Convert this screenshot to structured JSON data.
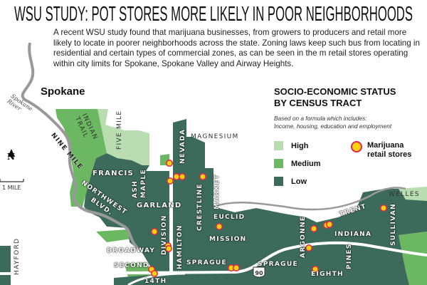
{
  "title": "WSU STUDY: POT STORES MORE LIKELY IN POOR NEIGHBORHOODS",
  "intro_lines": [
    "A recent WSU study found that marijuana businesses, from growers to producers and retail",
    "more likely to locate in poorer neighborhoods across the state. Zoning laws keep such bus",
    "from locating in residential and certain types of commercial zones, as can be seen in the m",
    "retail stores operating within city limits for Spokane, Spokane Valley and Airway Heights."
  ],
  "map": {
    "city_label": "Spokane",
    "river_label": "Spokane River",
    "north_label": "N",
    "scale_label": "1 MILE",
    "interstate_shield": "90",
    "labels": {
      "indian_trail": "INDIAN TRAIL",
      "nine_mile": "NINE MILE",
      "five_mile": "FIVE MILE",
      "magnesium": "MAGNESIUM",
      "nevada": "NEVADA",
      "francis": "FRANCIS",
      "ash": "ASH",
      "maple": "MAPLE",
      "northwest": "NORTHWEST",
      "blvd": "BLVD.",
      "garland": "GARLAND",
      "crestline": "CRESTLINE",
      "market": "MARKET",
      "euclid": "EUCLID",
      "mission": "MISSION",
      "division": "DIVISION",
      "hamilton": "HAMILTON",
      "broadway": "BROADWAY",
      "second": "SECOND",
      "sprague_w": "SPRAGUE",
      "sprague_e": "SPRAGUE",
      "fourteenth": "14TH",
      "hayford": "HAYFORD",
      "argonne": "ARGONNE",
      "eighth": "EIGHTH",
      "pines": "PINES",
      "trent": "TRENT",
      "indiana": "INDIANA",
      "sullivan": "SULLIVAN",
      "wellesley": "WELLES"
    },
    "store_count_shown": 20
  },
  "legend": {
    "title_line1": "SOCIO-ECONOMIC STATUS",
    "title_line2": "BY CENSUS TRACT",
    "subtitle_line1": "Based on a formula which includes:",
    "subtitle_line2": "Income, housing, education and employment",
    "items": [
      {
        "label": "High",
        "color": "#b9dcb0"
      },
      {
        "label": "Medium",
        "color": "#6cb862"
      },
      {
        "label": "Low",
        "color": "#3d6b5b"
      }
    ],
    "marker_label": "Marijuana retail stores",
    "marker_fill": "#fdd10e",
    "marker_stroke": "#e0264e"
  }
}
